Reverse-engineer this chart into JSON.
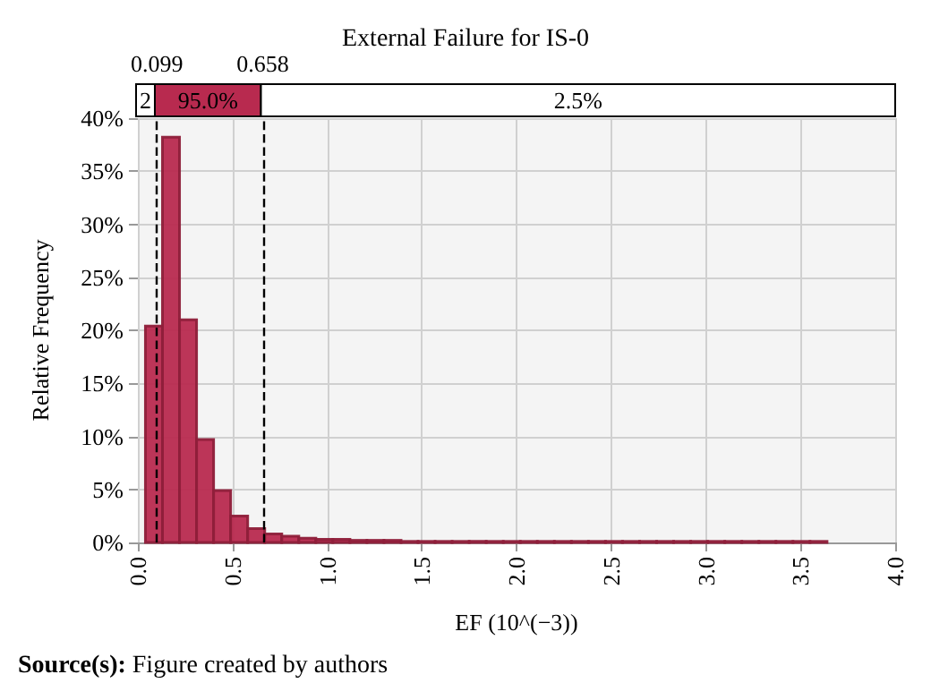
{
  "chart_data": {
    "type": "histogram",
    "title": "External Failure for IS-0",
    "xlabel": "EF (10^(−3))",
    "ylabel": "Relative Frequency",
    "bins": [
      0.04,
      0.13,
      0.22,
      0.31,
      0.4,
      0.49,
      0.58,
      0.67,
      0.76,
      0.85,
      0.94,
      1.03,
      1.12,
      1.21,
      1.3,
      1.39,
      1.48,
      1.57,
      1.66,
      1.75,
      1.84,
      1.93,
      2.02,
      2.11,
      2.2,
      2.29,
      2.38,
      2.47,
      2.56,
      2.65,
      2.74,
      2.83,
      2.92,
      3.01,
      3.1,
      3.19,
      3.28,
      3.37,
      3.46,
      3.55,
      3.64
    ],
    "values": [
      20.4,
      38.2,
      21.0,
      9.7,
      4.9,
      2.5,
      1.3,
      0.8,
      0.6,
      0.4,
      0.3,
      0.3,
      0.2,
      0.2,
      0.2,
      0.1,
      0.1,
      0.1,
      0.1,
      0.1,
      0.1,
      0.1,
      0.1,
      0.1,
      0.1,
      0.1,
      0.1,
      0.1,
      0.1,
      0.1,
      0.1,
      0.1,
      0.1,
      0.1,
      0.1,
      0.1,
      0.1,
      0.1,
      0.1,
      0.1
    ],
    "color": "#b82a4f",
    "xlim": [
      0,
      4
    ],
    "xticks": [
      {
        "value": 0,
        "label": "0.0"
      },
      0.5,
      {
        "value": 1,
        "label": "1.0"
      },
      1.5,
      {
        "value": 2,
        "label": "2.0"
      },
      2.5,
      {
        "value": 3,
        "label": "3.0"
      },
      3.5,
      {
        "value": 4,
        "label": "4.0"
      }
    ],
    "ylim": [
      0,
      40
    ],
    "yticks": [
      {
        "value": 0,
        "label": "0%"
      },
      {
        "value": 5,
        "label": "5%"
      },
      {
        "value": 10,
        "label": "10%"
      },
      {
        "value": 15,
        "label": "15%"
      },
      {
        "value": 20,
        "label": "20%"
      },
      {
        "value": 25,
        "label": "25%"
      },
      {
        "value": 30,
        "label": "30%"
      },
      {
        "value": 35,
        "label": "35%"
      },
      {
        "value": 40,
        "label": "40%"
      }
    ],
    "grid": true,
    "ref_lines": [
      {
        "axis": "x",
        "value": 0.099,
        "label": "0.099",
        "line_style": "dashed",
        "color": "#000000"
      },
      {
        "axis": "x",
        "value": 0.658,
        "label": "0.658",
        "line_style": "dashed",
        "color": "#000000"
      }
    ],
    "annotations": [
      "2",
      "95.0%",
      "2.5%",
      "Source(s): Figure created by authors"
    ]
  }
}
